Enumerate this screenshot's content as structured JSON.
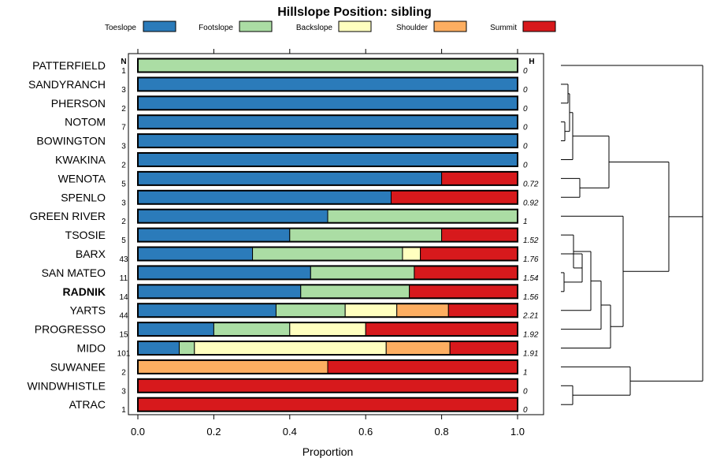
{
  "chart_data": {
    "type": "bar",
    "orientation": "horizontal",
    "stacked": true,
    "title": "Hillslope Position: sibling",
    "xlabel": "Proportion",
    "ylabel": "",
    "xlim": [
      0,
      1
    ],
    "xticks": [
      0.0,
      0.2,
      0.4,
      0.6,
      0.8,
      1.0
    ],
    "xtick_labels": [
      "0.0",
      "0.2",
      "0.4",
      "0.6",
      "0.8",
      "1.0"
    ],
    "n_header": "N",
    "h_header": "H",
    "legend_position": "top",
    "series": [
      {
        "name": "Toeslope",
        "color": "#2b7bba"
      },
      {
        "name": "Footslope",
        "color": "#abdda4"
      },
      {
        "name": "Backslope",
        "color": "#ffffbf"
      },
      {
        "name": "Shoulder",
        "color": "#fdae61"
      },
      {
        "name": "Summit",
        "color": "#d7191c"
      }
    ],
    "rows": [
      {
        "label": "PATTERFIELD",
        "n": "1",
        "h": "0",
        "bold": false,
        "values": [
          0,
          1,
          0,
          0,
          0
        ]
      },
      {
        "label": "SANDYRANCH",
        "n": "3",
        "h": "0",
        "bold": false,
        "values": [
          1,
          0,
          0,
          0,
          0
        ]
      },
      {
        "label": "PHERSON",
        "n": "2",
        "h": "0",
        "bold": false,
        "values": [
          1,
          0,
          0,
          0,
          0
        ]
      },
      {
        "label": "NOTOM",
        "n": "7",
        "h": "0",
        "bold": false,
        "values": [
          1,
          0,
          0,
          0,
          0
        ]
      },
      {
        "label": "BOWINGTON",
        "n": "3",
        "h": "0",
        "bold": false,
        "values": [
          1,
          0,
          0,
          0,
          0
        ]
      },
      {
        "label": "KWAKINA",
        "n": "2",
        "h": "0",
        "bold": false,
        "values": [
          1,
          0,
          0,
          0,
          0
        ]
      },
      {
        "label": "WENOTA",
        "n": "5",
        "h": "0.72",
        "bold": false,
        "values": [
          0.8,
          0,
          0,
          0,
          0.2
        ]
      },
      {
        "label": "SPENLO",
        "n": "3",
        "h": "0.92",
        "bold": false,
        "values": [
          0.667,
          0,
          0,
          0,
          0.333
        ]
      },
      {
        "label": "GREEN RIVER",
        "n": "2",
        "h": "1",
        "bold": false,
        "values": [
          0.5,
          0.5,
          0,
          0,
          0
        ]
      },
      {
        "label": "TSOSIE",
        "n": "5",
        "h": "1.52",
        "bold": false,
        "values": [
          0.4,
          0.4,
          0,
          0,
          0.2
        ]
      },
      {
        "label": "BARX",
        "n": "43",
        "h": "1.76",
        "bold": false,
        "values": [
          0.302,
          0.395,
          0.047,
          0,
          0.256
        ]
      },
      {
        "label": "SAN MATEO",
        "n": "11",
        "h": "1.54",
        "bold": false,
        "values": [
          0.455,
          0.273,
          0,
          0,
          0.272
        ]
      },
      {
        "label": "RADNIK",
        "n": "14",
        "h": "1.56",
        "bold": true,
        "values": [
          0.429,
          0.286,
          0,
          0,
          0.285
        ]
      },
      {
        "label": "YARTS",
        "n": "44",
        "h": "2.21",
        "bold": false,
        "values": [
          0.364,
          0.182,
          0.136,
          0.136,
          0.182
        ]
      },
      {
        "label": "PROGRESSO",
        "n": "15",
        "h": "1.92",
        "bold": false,
        "values": [
          0.2,
          0.2,
          0.2,
          0,
          0.4
        ]
      },
      {
        "label": "MIDO",
        "n": "101",
        "h": "1.91",
        "bold": false,
        "values": [
          0.109,
          0.04,
          0.505,
          0.168,
          0.178
        ]
      },
      {
        "label": "SUWANEE",
        "n": "2",
        "h": "1",
        "bold": false,
        "values": [
          0,
          0,
          0,
          0.5,
          0.5
        ]
      },
      {
        "label": "WINDWHISTLE",
        "n": "3",
        "h": "0",
        "bold": false,
        "values": [
          0,
          0,
          0,
          0,
          1
        ]
      },
      {
        "label": "ATRAC",
        "n": "1",
        "h": "0",
        "bold": false,
        "values": [
          0,
          0,
          0,
          0,
          1
        ]
      }
    ]
  }
}
